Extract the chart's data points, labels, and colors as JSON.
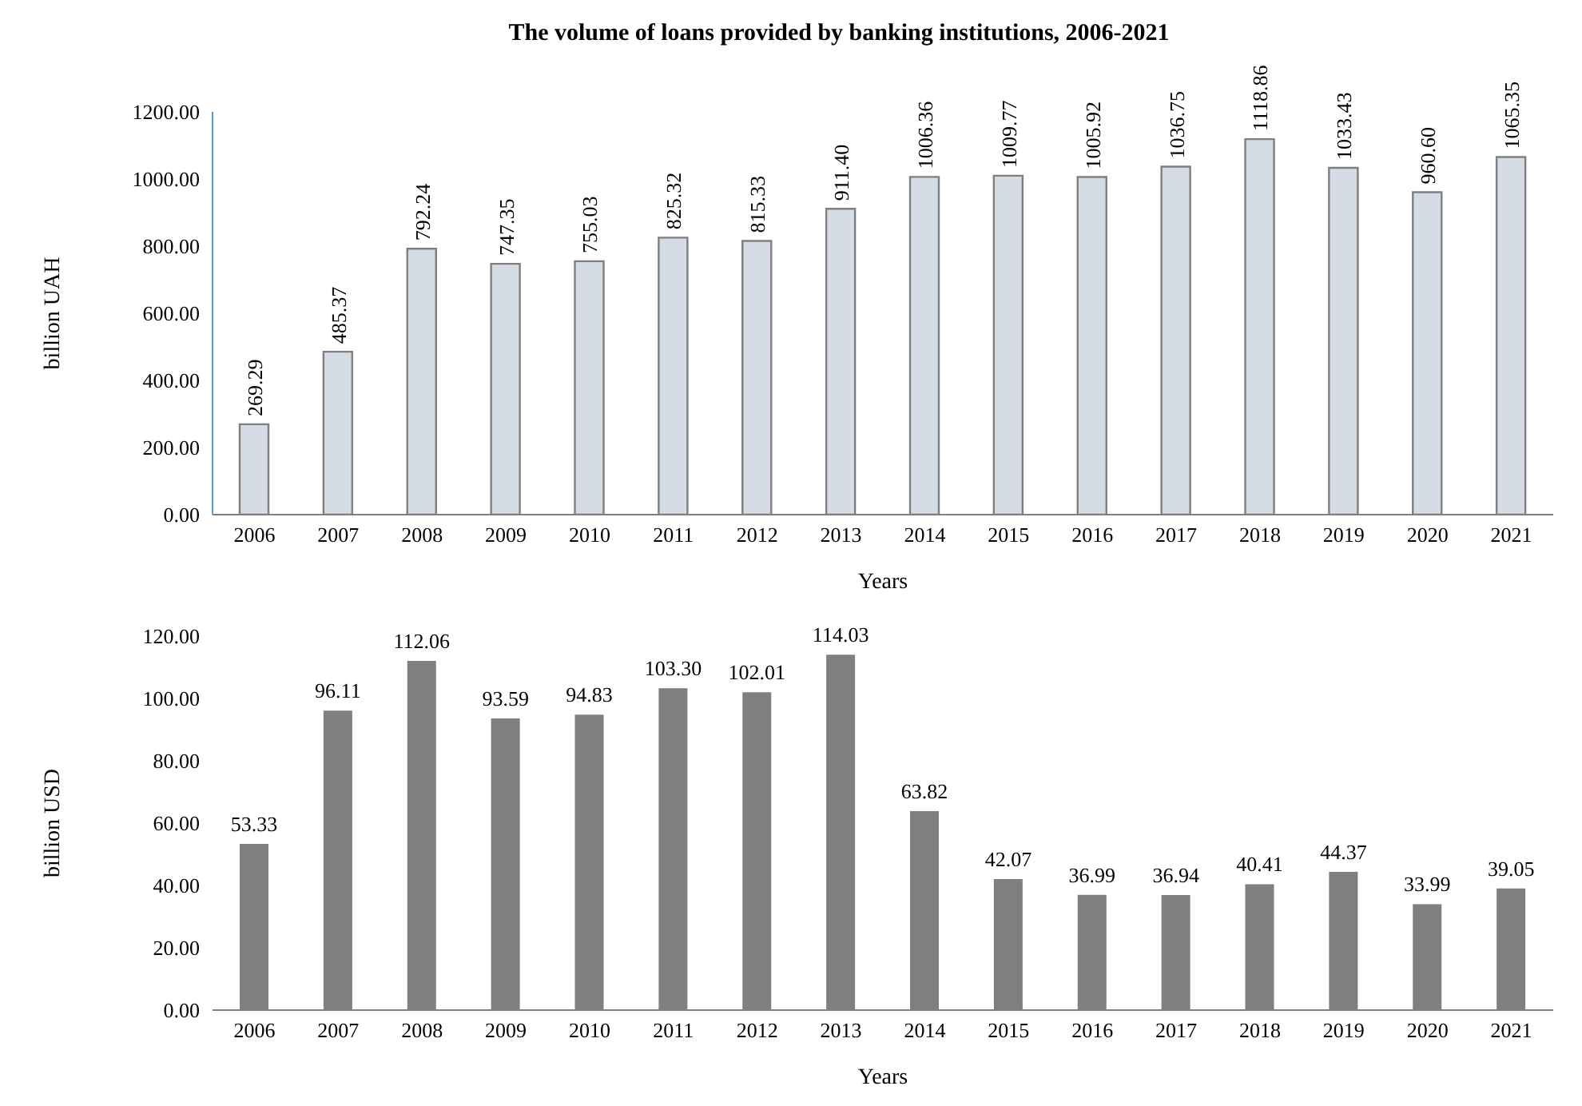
{
  "chart_data": [
    {
      "type": "bar",
      "title": "The volume of loans provided by banking institutions, 2006-2021",
      "xlabel": "Years",
      "ylabel": "billion UAH",
      "categories": [
        "2006",
        "2007",
        "2008",
        "2009",
        "2010",
        "2011",
        "2012",
        "2013",
        "2014",
        "2015",
        "2016",
        "2017",
        "2018",
        "2019",
        "2020",
        "2021"
      ],
      "series": [
        {
          "color": "#d6dce5",
          "values": [
            269.29,
            485.37,
            792.24,
            747.35,
            755.03,
            825.32,
            815.33,
            911.4,
            1006.36,
            1009.77,
            1005.92,
            1036.75,
            1118.86,
            1033.43,
            960.6,
            1065.35
          ],
          "value_labels": [
            "269.29",
            "485.37",
            "792.24",
            "747.35",
            "755.03",
            "825.32",
            "815.33",
            "911.40",
            "1006.36",
            "1009.77",
            "1005.92",
            "1036.75",
            "1118.86",
            "1033.43",
            "960.60",
            "1065.35"
          ]
        }
      ],
      "ylim": [
        0,
        1200
      ],
      "yticks": [
        {
          "value": 0,
          "label": "0.00"
        },
        {
          "value": 200,
          "label": "200.00"
        },
        {
          "value": 400,
          "label": "400.00"
        },
        {
          "value": 600,
          "label": "600.00"
        },
        {
          "value": 800,
          "label": "800.00"
        },
        {
          "value": 1000,
          "label": "1000.00"
        },
        {
          "value": 1200,
          "label": "1200.00"
        }
      ],
      "grid": false,
      "legend": false
    },
    {
      "type": "bar",
      "xlabel": "Years",
      "ylabel": "billion USD",
      "categories": [
        "2006",
        "2007",
        "2008",
        "2009",
        "2010",
        "2011",
        "2012",
        "2013",
        "2014",
        "2015",
        "2016",
        "2017",
        "2018",
        "2019",
        "2020",
        "2021"
      ],
      "series": [
        {
          "color": "#7f7f7f",
          "values": [
            53.33,
            96.11,
            112.06,
            93.59,
            94.83,
            103.3,
            102.01,
            114.03,
            63.82,
            42.07,
            36.99,
            36.94,
            40.41,
            44.37,
            33.99,
            39.05
          ],
          "value_labels": [
            "53.33",
            "96.11",
            "112.06",
            "93.59",
            "94.83",
            "103.30",
            "102.01",
            "114.03",
            "63.82",
            "42.07",
            "36.99",
            "36.94",
            "40.41",
            "44.37",
            "33.99",
            "39.05"
          ]
        }
      ],
      "ylim": [
        0,
        120
      ],
      "yticks": [
        {
          "value": 0,
          "label": "0.00"
        },
        {
          "value": 20,
          "label": "20.00"
        },
        {
          "value": 40,
          "label": "40.00"
        },
        {
          "value": 60,
          "label": "60.00"
        },
        {
          "value": 80,
          "label": "80.00"
        },
        {
          "value": 100,
          "label": "100.00"
        },
        {
          "value": 120,
          "label": "120.00"
        }
      ],
      "grid": false,
      "legend": false
    }
  ]
}
